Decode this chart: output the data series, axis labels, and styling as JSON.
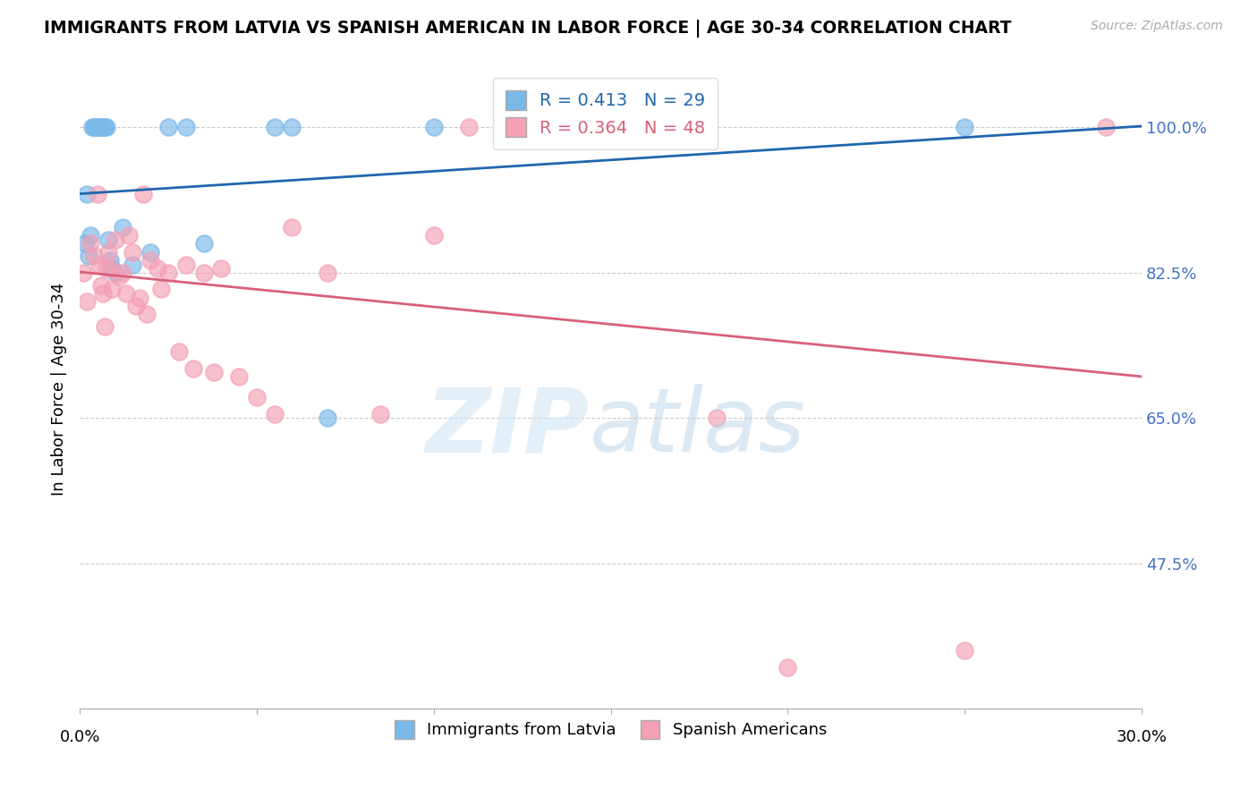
{
  "title": "IMMIGRANTS FROM LATVIA VS SPANISH AMERICAN IN LABOR FORCE | AGE 30-34 CORRELATION CHART",
  "source": "Source: ZipAtlas.com",
  "ylabel": "In Labor Force | Age 30-34",
  "xlim": [
    0.0,
    30.0
  ],
  "ylim": [
    30.0,
    107.0
  ],
  "yticks": [
    47.5,
    65.0,
    82.5,
    100.0
  ],
  "ytick_labels": [
    "47.5%",
    "65.0%",
    "82.5%",
    "100.0%"
  ],
  "blue_R": 0.413,
  "blue_N": 29,
  "pink_R": 0.364,
  "pink_N": 48,
  "blue_color": "#7ab8e8",
  "pink_color": "#f4a0b5",
  "blue_line_color": "#2166ac",
  "pink_line_color": "#d9607a",
  "legend_label_blue": "Immigrants from Latvia",
  "legend_label_pink": "Spanish Americans",
  "blue_points_x": [
    0.15,
    0.2,
    0.25,
    0.3,
    0.35,
    0.4,
    0.45,
    0.5,
    0.55,
    0.6,
    0.65,
    0.7,
    0.75,
    0.8,
    0.85,
    0.9,
    1.0,
    1.2,
    1.5,
    2.0,
    2.5,
    3.0,
    3.5,
    5.5,
    6.0,
    7.0,
    10.0,
    15.0,
    25.0
  ],
  "blue_points_y": [
    86.0,
    92.0,
    84.5,
    87.0,
    100.0,
    100.0,
    100.0,
    100.0,
    100.0,
    100.0,
    100.0,
    100.0,
    100.0,
    86.5,
    84.0,
    83.0,
    82.5,
    88.0,
    83.5,
    85.0,
    100.0,
    100.0,
    86.0,
    100.0,
    100.0,
    65.0,
    100.0,
    100.0,
    100.0
  ],
  "pink_points_x": [
    0.1,
    0.2,
    0.3,
    0.4,
    0.5,
    0.55,
    0.6,
    0.65,
    0.7,
    0.75,
    0.8,
    0.85,
    0.9,
    1.0,
    1.1,
    1.2,
    1.3,
    1.4,
    1.5,
    1.6,
    1.7,
    1.8,
    1.9,
    2.0,
    2.2,
    2.3,
    2.5,
    2.8,
    3.0,
    3.2,
    3.5,
    3.8,
    4.0,
    4.5,
    5.0,
    5.5,
    6.0,
    7.0,
    8.5,
    10.0,
    11.0,
    12.0,
    14.0,
    15.0,
    18.0,
    20.0,
    25.0,
    29.0
  ],
  "pink_points_y": [
    82.5,
    79.0,
    86.0,
    84.5,
    92.0,
    83.5,
    81.0,
    80.0,
    76.0,
    83.0,
    85.0,
    83.0,
    80.5,
    86.5,
    82.0,
    82.5,
    80.0,
    87.0,
    85.0,
    78.5,
    79.5,
    92.0,
    77.5,
    84.0,
    83.0,
    80.5,
    82.5,
    73.0,
    83.5,
    71.0,
    82.5,
    70.5,
    83.0,
    70.0,
    67.5,
    65.5,
    88.0,
    82.5,
    65.5,
    87.0,
    100.0,
    100.0,
    100.0,
    100.0,
    65.0,
    35.0,
    37.0,
    100.0
  ],
  "title_fontsize": 13.5,
  "source_fontsize": 10,
  "axis_label_fontsize": 13,
  "tick_fontsize": 13,
  "legend_fontsize": 14
}
